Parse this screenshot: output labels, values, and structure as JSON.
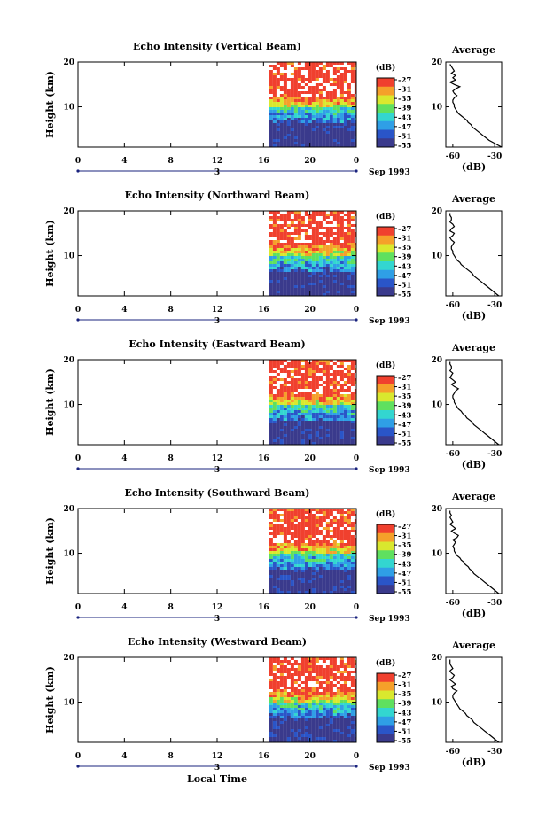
{
  "chart_data": [
    {
      "type": "heatmap",
      "title": "Echo Intensity (Vertical Beam)",
      "ylabel": "Height (km)",
      "x_ticks": [
        "0",
        "4",
        "8",
        "12",
        "16",
        "20",
        "0"
      ],
      "xlim": [
        0,
        24
      ],
      "y_ticks": [
        "20",
        "10"
      ],
      "ylim": [
        1,
        20
      ],
      "date_marker": "3",
      "date_label": "Sep 1993",
      "colorbar_title": "(dB)",
      "colorbar_ticks": [
        "-27",
        "-31",
        "-35",
        "-39",
        "-43",
        "-47",
        "-51",
        "-55"
      ],
      "data_start_hour": 16.5,
      "average_profile": {
        "title": "Average",
        "xlabel": "(dB)",
        "x_ticks": [
          "-60",
          "-30"
        ],
        "xlim": [
          -65,
          -25
        ],
        "y_ticks": [
          "20",
          "10"
        ],
        "ylim": [
          1,
          20
        ],
        "x": [
          -25,
          -28,
          -31,
          -34,
          -36,
          -38,
          -40,
          -42,
          -44,
          -46,
          -47,
          -49,
          -50,
          -52,
          -54,
          -56,
          -57,
          -58,
          -59,
          -59,
          -60,
          -60,
          -59,
          -57,
          -59,
          -60,
          -58,
          -55,
          -59,
          -62,
          -58,
          -60,
          -58,
          -61,
          -59,
          -60,
          -61,
          -62
        ],
        "y": [
          1.0,
          1.5,
          2.0,
          2.5,
          3.0,
          3.5,
          4.0,
          4.5,
          5.0,
          5.5,
          6.0,
          6.5,
          7.0,
          7.5,
          8.0,
          8.5,
          9.0,
          9.5,
          10.0,
          10.5,
          11.0,
          11.5,
          12.0,
          12.5,
          13.0,
          13.5,
          14.0,
          14.5,
          15.0,
          15.5,
          16.0,
          16.5,
          17.0,
          17.5,
          18.0,
          18.5,
          19.0,
          19.5
        ]
      }
    },
    {
      "type": "heatmap",
      "title": "Echo Intensity (Northward Beam)",
      "ylabel": "Height (km)",
      "x_ticks": [
        "0",
        "4",
        "8",
        "12",
        "16",
        "20",
        "0"
      ],
      "xlim": [
        0,
        24
      ],
      "y_ticks": [
        "20",
        "10"
      ],
      "ylim": [
        1,
        20
      ],
      "date_marker": "3",
      "date_label": "Sep 1993",
      "colorbar_title": "(dB)",
      "colorbar_ticks": [
        "-27",
        "-31",
        "-35",
        "-39",
        "-43",
        "-47",
        "-51",
        "-55"
      ],
      "data_start_hour": 16.5,
      "average_profile": {
        "title": "Average",
        "xlabel": "(dB)",
        "x_ticks": [
          "-60",
          "-30"
        ],
        "xlim": [
          -65,
          -25
        ],
        "y_ticks": [
          "20",
          "10"
        ],
        "ylim": [
          1,
          20
        ],
        "x": [
          -27,
          -29,
          -31,
          -33,
          -35,
          -37,
          -39,
          -41,
          -43,
          -45,
          -46,
          -48,
          -50,
          -52,
          -54,
          -55,
          -57,
          -58,
          -59,
          -60,
          -60,
          -61,
          -61,
          -60,
          -59,
          -61,
          -62,
          -60,
          -59,
          -62,
          -61,
          -59,
          -60,
          -62,
          -61,
          -61,
          -62,
          -62
        ],
        "y": [
          1.0,
          1.5,
          2.0,
          2.5,
          3.0,
          3.5,
          4.0,
          4.5,
          5.0,
          5.5,
          6.0,
          6.5,
          7.0,
          7.5,
          8.0,
          8.5,
          9.0,
          9.5,
          10.0,
          10.5,
          11.0,
          11.5,
          12.0,
          12.5,
          13.0,
          13.5,
          14.0,
          14.5,
          15.0,
          15.5,
          16.0,
          16.5,
          17.0,
          17.5,
          18.0,
          18.5,
          19.0,
          19.5
        ]
      }
    },
    {
      "type": "heatmap",
      "title": "Echo Intensity (Eastward Beam)",
      "ylabel": "Height (km)",
      "x_ticks": [
        "0",
        "4",
        "8",
        "12",
        "16",
        "20",
        "0"
      ],
      "xlim": [
        0,
        24
      ],
      "y_ticks": [
        "20",
        "10"
      ],
      "ylim": [
        1,
        20
      ],
      "date_marker": "3",
      "date_label": "Sep 1993",
      "colorbar_title": "(dB)",
      "colorbar_ticks": [
        "-27",
        "-31",
        "-35",
        "-39",
        "-43",
        "-47",
        "-51",
        "-55"
      ],
      "data_start_hour": 16.5,
      "average_profile": {
        "title": "Average",
        "xlabel": "(dB)",
        "x_ticks": [
          "-60",
          "-30"
        ],
        "xlim": [
          -65,
          -25
        ],
        "y_ticks": [
          "20",
          "10"
        ],
        "ylim": [
          1,
          20
        ],
        "x": [
          -27,
          -29,
          -31,
          -33,
          -35,
          -37,
          -39,
          -41,
          -43,
          -45,
          -46,
          -48,
          -50,
          -51,
          -53,
          -54,
          -56,
          -57,
          -58,
          -59,
          -59,
          -60,
          -60,
          -59,
          -58,
          -56,
          -59,
          -61,
          -58,
          -60,
          -62,
          -61,
          -60,
          -62,
          -61,
          -61,
          -62,
          -62
        ],
        "y": [
          1.0,
          1.5,
          2.0,
          2.5,
          3.0,
          3.5,
          4.0,
          4.5,
          5.0,
          5.5,
          6.0,
          6.5,
          7.0,
          7.5,
          8.0,
          8.5,
          9.0,
          9.5,
          10.0,
          10.5,
          11.0,
          11.5,
          12.0,
          12.5,
          13.0,
          13.5,
          14.0,
          14.5,
          15.0,
          15.5,
          16.0,
          16.5,
          17.0,
          17.5,
          18.0,
          18.5,
          19.0,
          19.5
        ]
      }
    },
    {
      "type": "heatmap",
      "title": "Echo Intensity (Southward Beam)",
      "ylabel": "Height (km)",
      "x_ticks": [
        "0",
        "4",
        "8",
        "12",
        "16",
        "20",
        "0"
      ],
      "xlim": [
        0,
        24
      ],
      "y_ticks": [
        "20",
        "10"
      ],
      "ylim": [
        1,
        20
      ],
      "date_marker": "3",
      "date_label": "Sep 1993",
      "colorbar_title": "(dB)",
      "colorbar_ticks": [
        "-27",
        "-31",
        "-35",
        "-39",
        "-43",
        "-47",
        "-51",
        "-55"
      ],
      "data_start_hour": 16.5,
      "average_profile": {
        "title": "Average",
        "xlabel": "(dB)",
        "x_ticks": [
          "-60",
          "-30"
        ],
        "xlim": [
          -65,
          -25
        ],
        "y_ticks": [
          "20",
          "10"
        ],
        "ylim": [
          1,
          20
        ],
        "x": [
          -27,
          -29,
          -31,
          -33,
          -35,
          -37,
          -39,
          -41,
          -43,
          -45,
          -46,
          -48,
          -49,
          -51,
          -52,
          -54,
          -55,
          -57,
          -58,
          -59,
          -59,
          -60,
          -59,
          -58,
          -60,
          -57,
          -56,
          -59,
          -61,
          -58,
          -60,
          -62,
          -60,
          -61,
          -62,
          -61,
          -62,
          -62
        ],
        "y": [
          1.0,
          1.5,
          2.0,
          2.5,
          3.0,
          3.5,
          4.0,
          4.5,
          5.0,
          5.5,
          6.0,
          6.5,
          7.0,
          7.5,
          8.0,
          8.5,
          9.0,
          9.5,
          10.0,
          10.5,
          11.0,
          11.5,
          12.0,
          12.5,
          13.0,
          13.5,
          14.0,
          14.5,
          15.0,
          15.5,
          16.0,
          16.5,
          17.0,
          17.5,
          18.0,
          18.5,
          19.0,
          19.5
        ]
      }
    },
    {
      "type": "heatmap",
      "title": "Echo Intensity (Westward Beam)",
      "ylabel": "Height (km)",
      "x_ticks": [
        "0",
        "4",
        "8",
        "12",
        "16",
        "20",
        "0"
      ],
      "xlim": [
        0,
        24
      ],
      "y_ticks": [
        "20",
        "10"
      ],
      "ylim": [
        1,
        20
      ],
      "date_marker": "3",
      "date_label": "Sep 1993",
      "xlabel": "Local Time",
      "colorbar_title": "(dB)",
      "colorbar_ticks": [
        "-27",
        "-31",
        "-35",
        "-39",
        "-43",
        "-47",
        "-51",
        "-55"
      ],
      "data_start_hour": 16.5,
      "average_profile": {
        "title": "Average",
        "xlabel": "(dB)",
        "x_ticks": [
          "-60",
          "-30"
        ],
        "xlim": [
          -65,
          -25
        ],
        "y_ticks": [
          "20",
          "10"
        ],
        "ylim": [
          1,
          20
        ],
        "x": [
          -27,
          -29,
          -31,
          -33,
          -35,
          -37,
          -39,
          -41,
          -43,
          -45,
          -46,
          -48,
          -50,
          -51,
          -53,
          -55,
          -56,
          -57,
          -58,
          -59,
          -60,
          -60,
          -59,
          -57,
          -60,
          -61,
          -58,
          -60,
          -62,
          -60,
          -59,
          -61,
          -62,
          -60,
          -61,
          -62,
          -62,
          -62
        ],
        "y": [
          1.0,
          1.5,
          2.0,
          2.5,
          3.0,
          3.5,
          4.0,
          4.5,
          5.0,
          5.5,
          6.0,
          6.5,
          7.0,
          7.5,
          8.0,
          8.5,
          9.0,
          9.5,
          10.0,
          10.5,
          11.0,
          11.5,
          12.0,
          12.5,
          13.0,
          13.5,
          14.0,
          14.5,
          15.0,
          15.5,
          16.0,
          16.5,
          17.0,
          17.5,
          18.0,
          18.5,
          19.0,
          19.5
        ]
      }
    }
  ],
  "colormap": [
    "#3a3a8c",
    "#2a55c8",
    "#2f9fe6",
    "#33d6d0",
    "#5fe05f",
    "#d9e82e",
    "#f5a02a",
    "#f0402e"
  ]
}
